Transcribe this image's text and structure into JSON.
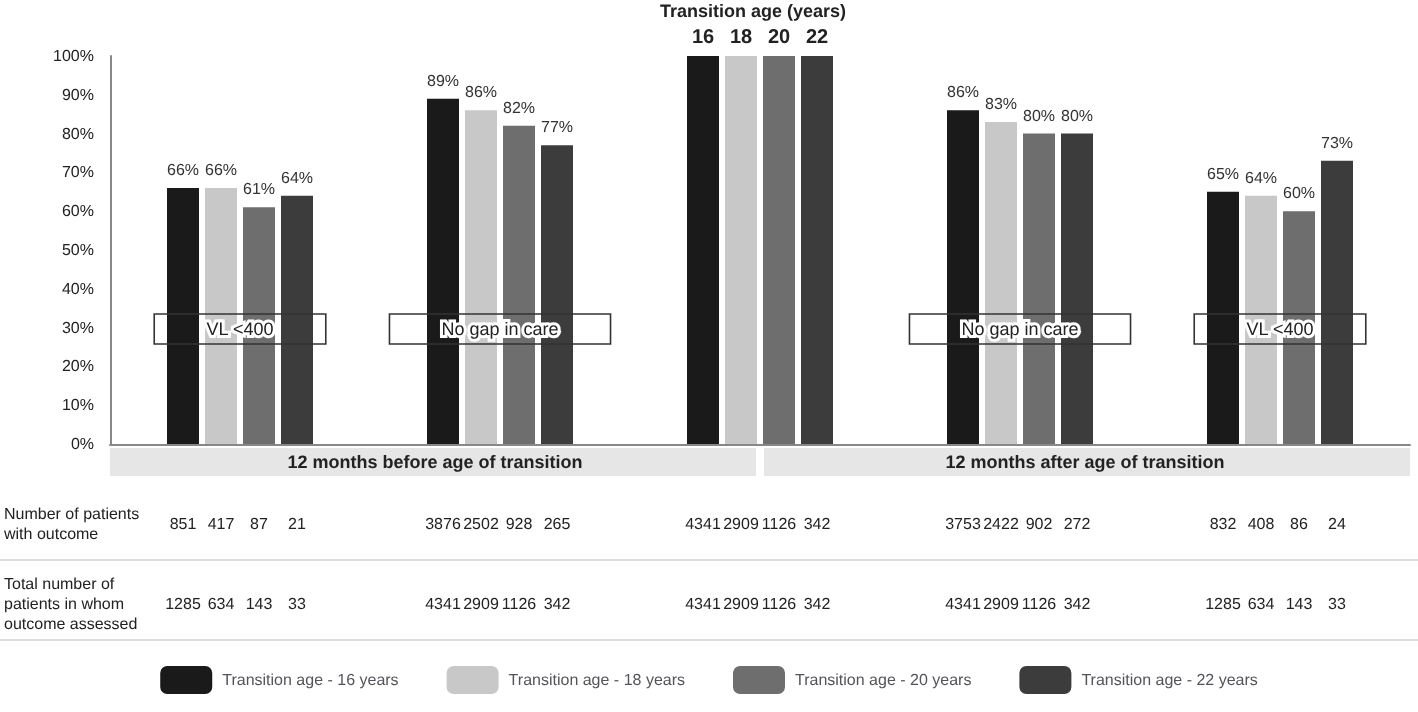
{
  "chart_data": {
    "type": "bar",
    "categories": [
      "VL <400",
      "No gap in care",
      null,
      "No gap in care",
      "VL <400"
    ],
    "series": [
      {
        "name": "Transition age - 16 years",
        "color": "#1a1a1a",
        "values": [
          66,
          89,
          100,
          86,
          65
        ],
        "value_labels": [
          "66%",
          "89%",
          null,
          "86%",
          "65%"
        ]
      },
      {
        "name": "Transition age - 18 years",
        "color": "#c8c8c8",
        "values": [
          66,
          86,
          100,
          83,
          64
        ],
        "value_labels": [
          "66%",
          "86%",
          null,
          "83%",
          "64%"
        ]
      },
      {
        "name": "Transition age - 20 years",
        "color": "#6e6e6e",
        "values": [
          61,
          82,
          100,
          80,
          60
        ],
        "value_labels": [
          "61%",
          "82%",
          null,
          "80%",
          "60%"
        ]
      },
      {
        "name": "Transition age - 22 years",
        "color": "#3c3c3c",
        "values": [
          64,
          77,
          100,
          80,
          73
        ],
        "value_labels": [
          "64%",
          "77%",
          null,
          "80%",
          "73%"
        ]
      }
    ],
    "ylim": [
      0,
      100
    ],
    "yticks": [
      {
        "value": 0,
        "label": "0%"
      },
      {
        "value": 10,
        "label": "10%"
      },
      {
        "value": 20,
        "label": "20%"
      },
      {
        "value": 30,
        "label": "30%"
      },
      {
        "value": 40,
        "label": "40%"
      },
      {
        "value": 50,
        "label": "50%"
      },
      {
        "value": 60,
        "label": "60%"
      },
      {
        "value": 70,
        "label": "70%"
      },
      {
        "value": 80,
        "label": "80%"
      },
      {
        "value": 90,
        "label": "90%"
      },
      {
        "value": 100,
        "label": "100%"
      }
    ],
    "grid": false,
    "legend": "bottom",
    "annotations": [
      "Transition age (years)",
      "12 months before age of transition",
      "12 months after age of transition",
      "Number of patients with outcome",
      "Total number of patients in whom outcome assessed",
      "16",
      "18",
      "20",
      "22",
      "851",
      "417",
      "87",
      "21",
      "3876",
      "2502",
      "928",
      "265",
      "4341",
      "2909",
      "1126",
      "342",
      "3753",
      "2422",
      "902",
      "272",
      "832",
      "408",
      "86",
      "24",
      "1285",
      "634",
      "143",
      "33",
      "4341",
      "2909",
      "1126",
      "342",
      "4341",
      "2909",
      "1126",
      "342",
      "4341",
      "2909",
      "1126",
      "342",
      "1285",
      "634",
      "143",
      "33"
    ]
  }
}
